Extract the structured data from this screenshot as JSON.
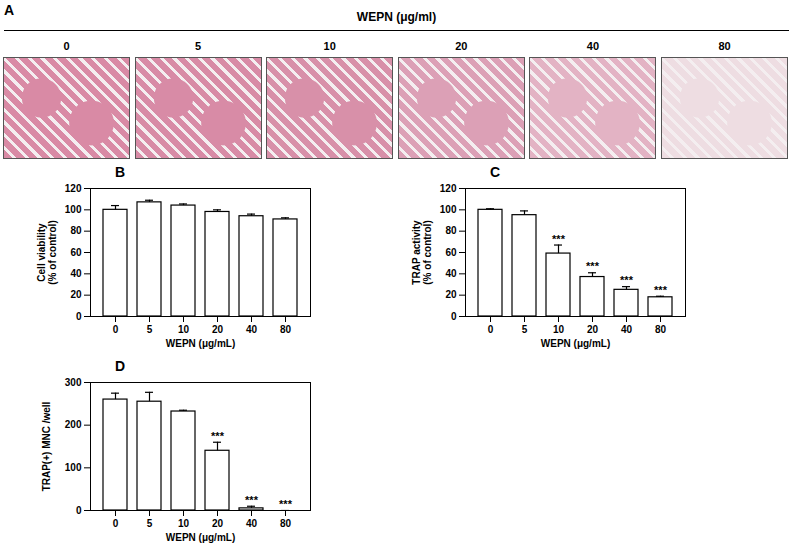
{
  "panel_a": {
    "panel": "A",
    "title": "WEPN (μg/ml)",
    "labels": [
      "0",
      "5",
      "10",
      "20",
      "40",
      "80"
    ]
  },
  "chart_data": [
    {
      "panel": "B",
      "type": "bar",
      "xlabel": "WEPN (μg/mL)",
      "ylabel": "Cell viability\n(% of control)",
      "categories": [
        0,
        5,
        10,
        20,
        40,
        80
      ],
      "values": [
        100,
        107,
        104,
        98,
        94,
        91
      ],
      "errors": [
        4,
        2,
        1.5,
        2,
        2,
        1.5
      ],
      "annotations": [
        null,
        null,
        null,
        null,
        null,
        null
      ],
      "ylim": [
        0,
        120
      ],
      "yticks": [
        0,
        20,
        40,
        60,
        80,
        100,
        120
      ],
      "color": "#ffffff"
    },
    {
      "panel": "C",
      "type": "bar",
      "xlabel": "WEPN (μg/mL)",
      "ylabel": "TRAP activity\n(% of control)",
      "categories": [
        0,
        5,
        10,
        20,
        40,
        80
      ],
      "values": [
        100,
        95,
        59,
        37,
        25,
        18
      ],
      "errors": [
        1,
        4,
        8,
        4,
        3,
        1
      ],
      "annotations": [
        null,
        null,
        "***",
        "***",
        "***",
        "***"
      ],
      "ylim": [
        0,
        120
      ],
      "yticks": [
        0,
        20,
        40,
        60,
        80,
        100,
        120
      ],
      "color": "#ffffff"
    },
    {
      "panel": "D",
      "type": "bar",
      "xlabel": "WEPN (μg/mL)",
      "ylabel": "TRAP(+) MNC /well",
      "categories": [
        0,
        5,
        10,
        20,
        40,
        80
      ],
      "values": [
        260,
        255,
        232,
        140,
        5,
        0
      ],
      "errors": [
        15,
        22,
        3,
        20,
        5,
        0
      ],
      "annotations": [
        null,
        null,
        null,
        "***",
        "***",
        "***"
      ],
      "ylim": [
        0,
        300
      ],
      "yticks": [
        0,
        100,
        200,
        300
      ],
      "color": "#ffffff"
    }
  ]
}
